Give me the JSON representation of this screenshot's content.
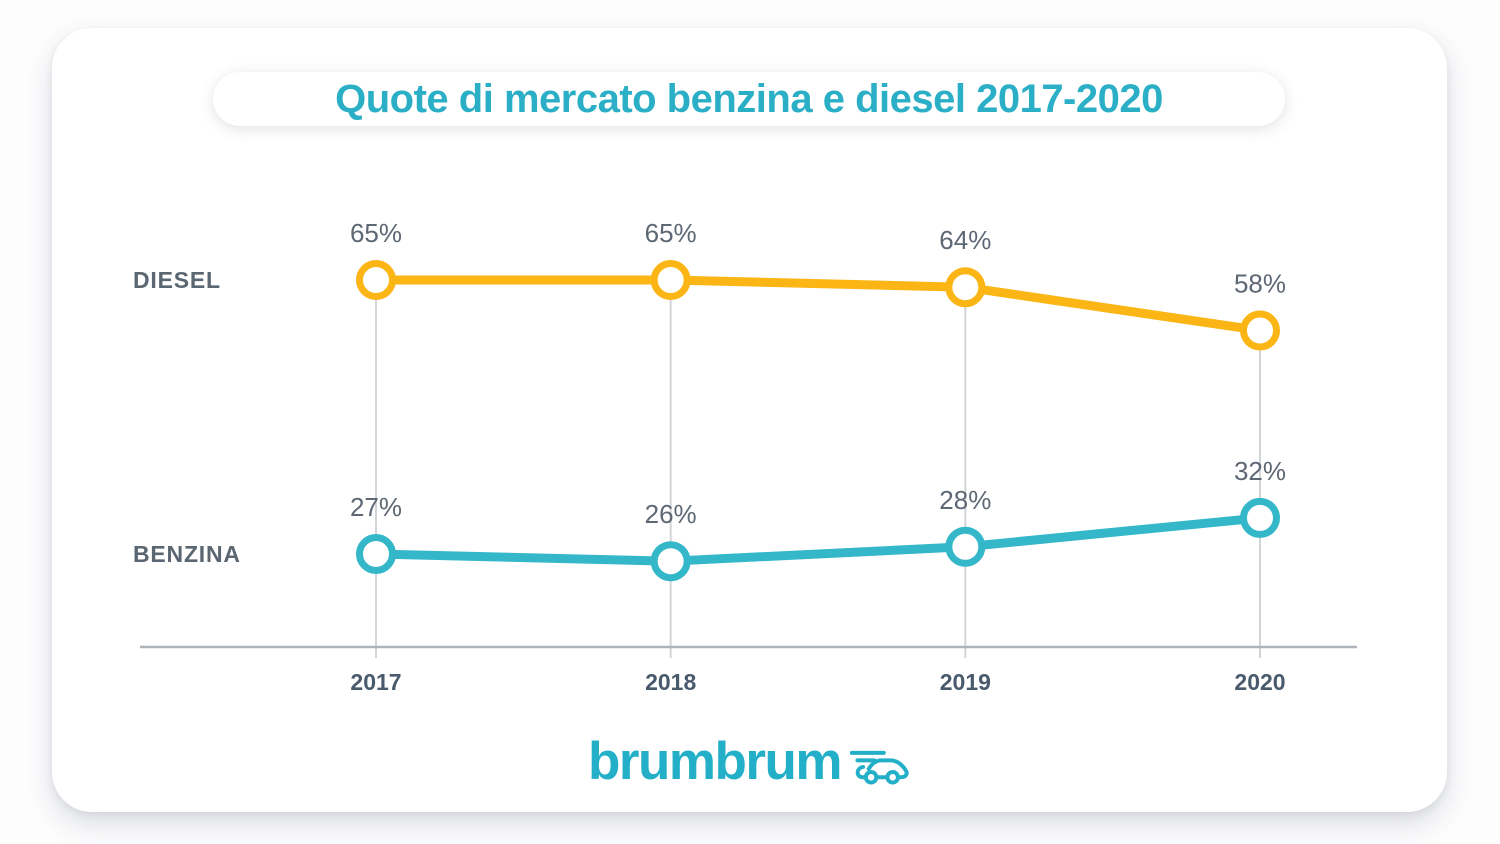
{
  "title": "Quote di mercato benzina e diesel 2017-2020",
  "logo": {
    "text": "brumbrum",
    "icon": "car-icon"
  },
  "colors": {
    "page_bg": "#fdfdfe",
    "card_bg": "#ffffff",
    "title": "#2bafc7",
    "logo": "#24afc9",
    "diesel": "#fbb515",
    "benzina": "#33b7c9",
    "value_label": "#5e6874",
    "year_label": "#4a5a6d",
    "series_label": "#5a6672",
    "gridline": "#d2d5d8",
    "axis": "#aeb4ba"
  },
  "chart_data": {
    "type": "line",
    "title": "Quote di mercato benzina e diesel 2017-2020",
    "categories": [
      "2017",
      "2018",
      "2019",
      "2020"
    ],
    "series": [
      {
        "name": "DIESEL",
        "values": [
          65,
          65,
          64,
          58
        ],
        "color": "#fbb515"
      },
      {
        "name": "BENZINA",
        "values": [
          27,
          26,
          28,
          32
        ],
        "color": "#33b7c9"
      }
    ],
    "value_suffix": "%",
    "xlabel": "",
    "ylabel": "",
    "ylim": [
      14,
      78
    ],
    "grid": "vertical",
    "legend_position": "left-inline",
    "point_style": "open-circle",
    "value_labels": "above-points"
  }
}
